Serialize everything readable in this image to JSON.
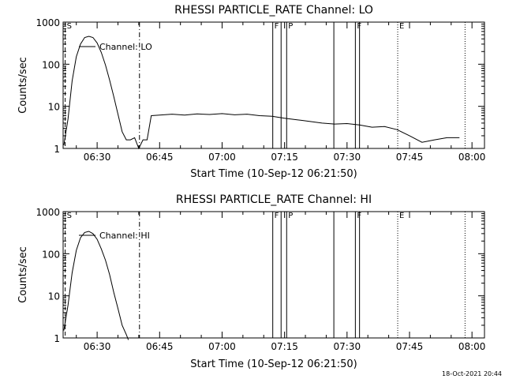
{
  "chart_data": [
    {
      "type": "line",
      "title": "RHESSI PARTICLE_RATE Channel: LO",
      "xlabel": "Start Time (10-Sep-12 06:21:50)",
      "ylabel": "Counts/sec",
      "y_scale": "log",
      "xlim": [
        "06:21:50",
        "08:03:00"
      ],
      "ylim": [
        1,
        1000
      ],
      "x_ticks": [
        "06:30",
        "06:45",
        "07:00",
        "07:15",
        "07:30",
        "07:45",
        "08:00"
      ],
      "y_ticks": [
        "1",
        "10",
        "100",
        "1000"
      ],
      "grid": false,
      "legend": "top-left",
      "series": [
        {
          "name": "Channel: LO",
          "x": [
            "06:22:00",
            "06:23:00",
            "06:24:00",
            "06:25:00",
            "06:26:00",
            "06:27:00",
            "06:28:00",
            "06:29:00",
            "06:30:00",
            "06:31:00",
            "06:32:00",
            "06:33:00",
            "06:34:00",
            "06:35:00",
            "06:36:00",
            "06:37:00",
            "06:38:00",
            "06:39:00",
            "06:40:00",
            "06:41:00",
            "06:42:00",
            "06:43:00",
            "06:45:00",
            "06:48:00",
            "06:51:00",
            "06:54:00",
            "06:57:00",
            "07:00:00",
            "07:03:00",
            "07:06:00",
            "07:09:00",
            "07:12:00",
            "07:15:00",
            "07:18:00",
            "07:21:00",
            "07:24:00",
            "07:27:00",
            "07:30:00",
            "07:33:00",
            "07:36:00",
            "07:39:00",
            "07:42:00",
            "07:45:00",
            "07:48:00",
            "07:51:00",
            "07:54:00",
            "07:57:00"
          ],
          "values": [
            1.2,
            5,
            40,
            150,
            300,
            430,
            460,
            430,
            320,
            190,
            95,
            42,
            17,
            6.5,
            2.5,
            1.6,
            1.6,
            1.8,
            1.0,
            1.6,
            1.6,
            6.0,
            6.2,
            6.5,
            6.2,
            6.6,
            6.4,
            6.7,
            6.3,
            6.5,
            6.0,
            5.8,
            5.2,
            4.8,
            4.4,
            4.0,
            3.8,
            3.9,
            3.6,
            3.2,
            3.3,
            2.8,
            2.0,
            1.4,
            1.6,
            1.8,
            1.8
          ]
        }
      ],
      "markers": [
        {
          "label": "S",
          "time": "06:22:20",
          "style": "dashed"
        },
        {
          "label": "",
          "time": "06:40:10",
          "style": "dash-dot"
        },
        {
          "label": "F",
          "time": "07:12:10",
          "style": "solid"
        },
        {
          "label": "",
          "time": "07:14:10",
          "style": "solid"
        },
        {
          "label": "P",
          "time": "07:15:30",
          "style": "solid"
        },
        {
          "label": "",
          "time": "07:26:50",
          "style": "solid"
        },
        {
          "label": "F",
          "time": "07:32:00",
          "style": "solid"
        },
        {
          "label": "",
          "time": "07:33:00",
          "style": "solid"
        },
        {
          "label": "E",
          "time": "07:42:10",
          "style": "dotted"
        },
        {
          "label": "",
          "time": "07:58:20",
          "style": "dotted"
        }
      ]
    },
    {
      "type": "line",
      "title": "RHESSI PARTICLE_RATE Channel: HI",
      "xlabel": "Start Time (10-Sep-12 06:21:50)",
      "ylabel": "Counts/sec",
      "y_scale": "log",
      "xlim": [
        "06:21:50",
        "08:03:00"
      ],
      "ylim": [
        1,
        1000
      ],
      "x_ticks": [
        "06:30",
        "06:45",
        "07:00",
        "07:15",
        "07:30",
        "07:45",
        "08:00"
      ],
      "y_ticks": [
        "1",
        "10",
        "100",
        "1000"
      ],
      "grid": false,
      "legend": "top-left",
      "series": [
        {
          "name": "Channel: HI",
          "x": [
            "06:22:00",
            "06:23:00",
            "06:24:00",
            "06:25:00",
            "06:26:00",
            "06:27:00",
            "06:28:00",
            "06:29:00",
            "06:30:00",
            "06:31:00",
            "06:32:00",
            "06:33:00",
            "06:34:00",
            "06:35:00",
            "06:36:00",
            "06:37:00",
            "06:37:30"
          ],
          "values": [
            1.5,
            6,
            35,
            120,
            240,
            320,
            340,
            300,
            220,
            130,
            70,
            32,
            12,
            5,
            2.0,
            1.2,
            0.9
          ]
        }
      ],
      "markers": [
        {
          "label": "S",
          "time": "06:22:20",
          "style": "dashed"
        },
        {
          "label": "",
          "time": "06:40:10",
          "style": "dash-dot"
        },
        {
          "label": "F",
          "time": "07:12:10",
          "style": "solid"
        },
        {
          "label": "",
          "time": "07:14:10",
          "style": "solid"
        },
        {
          "label": "P",
          "time": "07:15:30",
          "style": "solid"
        },
        {
          "label": "",
          "time": "07:26:50",
          "style": "solid"
        },
        {
          "label": "F",
          "time": "07:32:00",
          "style": "solid"
        },
        {
          "label": "",
          "time": "07:33:00",
          "style": "solid"
        },
        {
          "label": "E",
          "time": "07:42:10",
          "style": "dotted"
        },
        {
          "label": "",
          "time": "07:58:20",
          "style": "dotted"
        }
      ]
    }
  ],
  "timestamp": "18-Oct-2021 20:44"
}
